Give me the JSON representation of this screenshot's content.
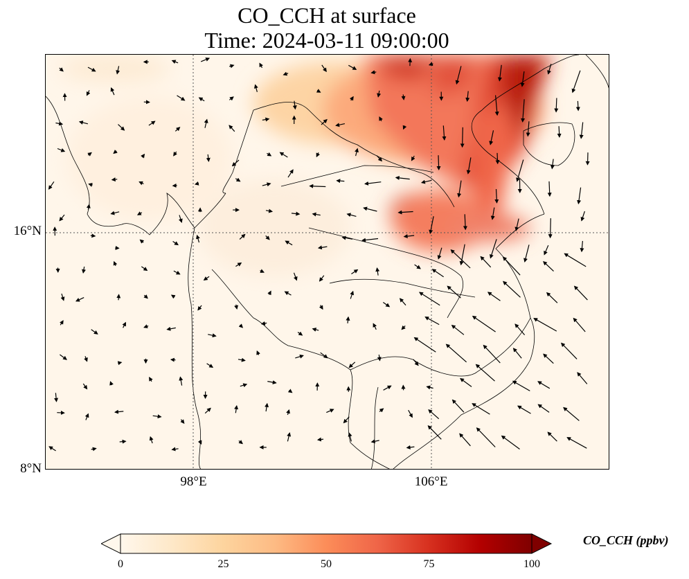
{
  "title": {
    "line1": "CO_CCH at surface",
    "line2": "Time: 2024-03-11 09:00:00"
  },
  "map": {
    "lon_range": [
      93,
      112
    ],
    "lat_range": [
      8,
      22
    ],
    "y_ticks": [
      {
        "value": 16,
        "label": "16°N"
      },
      {
        "value": 8,
        "label": "8°N"
      }
    ],
    "x_ticks": [
      {
        "value": 98,
        "label": "98°E"
      },
      {
        "value": 106,
        "label": "106°E"
      }
    ],
    "gridlines": "dotted"
  },
  "colorbar": {
    "label": "CO_CCH (ppbv)",
    "min": 0,
    "max": 100,
    "extend": "both",
    "ticks": [
      {
        "value": 0,
        "label": "0"
      },
      {
        "value": 25,
        "label": "25"
      },
      {
        "value": 50,
        "label": "50"
      },
      {
        "value": 75,
        "label": "75"
      },
      {
        "value": 100,
        "label": "100"
      }
    ],
    "colormap": [
      "#fff7ec",
      "#fee8c8",
      "#fdd49e",
      "#fdbb84",
      "#fc8d59",
      "#ef6548",
      "#d7301f",
      "#b30000",
      "#7f0000"
    ]
  }
}
